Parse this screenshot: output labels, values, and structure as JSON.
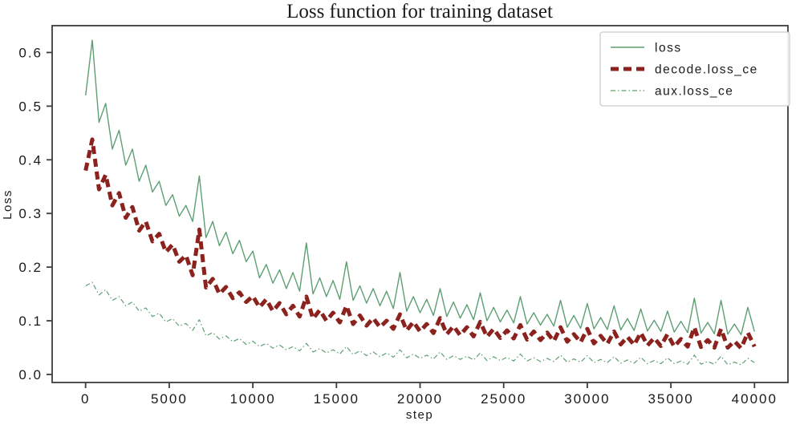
{
  "chart_data": {
    "type": "line",
    "title": "Loss function for training dataset",
    "xlabel": "step",
    "ylabel": "Loss",
    "xlim": [
      -2000,
      42000
    ],
    "ylim": [
      -0.015,
      0.65
    ],
    "grid": false,
    "legend_position": "upper right",
    "axis_color": "#3c3c3c",
    "x_ticks": {
      "values": [
        0,
        5000,
        10000,
        15000,
        20000,
        25000,
        30000,
        35000,
        40000
      ],
      "labels": [
        "0",
        "5000",
        "10000",
        "15000",
        "20000",
        "25000",
        "30000",
        "35000",
        "40000"
      ]
    },
    "y_ticks": {
      "values": [
        0.0,
        0.1,
        0.2,
        0.3,
        0.4,
        0.5,
        0.6
      ],
      "labels": [
        "0.0",
        "0.1",
        "0.2",
        "0.3",
        "0.4",
        "0.5",
        "0.6"
      ]
    },
    "x": [
      0,
      400,
      800,
      1200,
      1600,
      2000,
      2400,
      2800,
      3200,
      3600,
      4000,
      4400,
      4800,
      5200,
      5600,
      6000,
      6400,
      6800,
      7200,
      7600,
      8000,
      8400,
      8800,
      9200,
      9600,
      10000,
      10400,
      10800,
      11200,
      11600,
      12000,
      12400,
      12800,
      13200,
      13600,
      14000,
      14400,
      14800,
      15200,
      15600,
      16000,
      16400,
      16800,
      17200,
      17600,
      18000,
      18400,
      18800,
      19200,
      19600,
      20000,
      20400,
      20800,
      21200,
      21600,
      22000,
      22400,
      22800,
      23200,
      23600,
      24000,
      24400,
      24800,
      25200,
      25600,
      26000,
      26400,
      26800,
      27200,
      27600,
      28000,
      28400,
      28800,
      29200,
      29600,
      30000,
      30400,
      30800,
      31200,
      31600,
      32000,
      32400,
      32800,
      33200,
      33600,
      34000,
      34400,
      34800,
      35200,
      35600,
      36000,
      36400,
      36800,
      37200,
      37600,
      38000,
      38400,
      38800,
      39200,
      39600,
      40000
    ],
    "series": [
      {
        "name": "loss",
        "color": "#5d9f72",
        "width": 1.4,
        "dash": "",
        "values": [
          0.52,
          0.623,
          0.47,
          0.505,
          0.42,
          0.455,
          0.39,
          0.42,
          0.36,
          0.39,
          0.34,
          0.36,
          0.315,
          0.335,
          0.295,
          0.315,
          0.285,
          0.37,
          0.255,
          0.285,
          0.24,
          0.265,
          0.225,
          0.25,
          0.21,
          0.23,
          0.18,
          0.205,
          0.17,
          0.195,
          0.16,
          0.19,
          0.155,
          0.245,
          0.15,
          0.18,
          0.145,
          0.175,
          0.14,
          0.21,
          0.138,
          0.165,
          0.133,
          0.16,
          0.128,
          0.155,
          0.123,
          0.19,
          0.118,
          0.145,
          0.115,
          0.14,
          0.11,
          0.16,
          0.108,
          0.135,
          0.105,
          0.13,
          0.102,
          0.152,
          0.1,
          0.125,
          0.098,
          0.12,
          0.096,
          0.145,
          0.094,
          0.115,
          0.092,
          0.112,
          0.09,
          0.138,
          0.088,
          0.11,
          0.086,
          0.132,
          0.085,
          0.106,
          0.084,
          0.128,
          0.083,
          0.104,
          0.082,
          0.122,
          0.081,
          0.101,
          0.08,
          0.118,
          0.079,
          0.099,
          0.078,
          0.142,
          0.077,
          0.097,
          0.076,
          0.138,
          0.075,
          0.094,
          0.074,
          0.125,
          0.08
        ]
      },
      {
        "name": "decode.loss_ce",
        "color": "#8b221d",
        "width": 5,
        "dash": "10 6",
        "values": [
          0.38,
          0.438,
          0.345,
          0.372,
          0.315,
          0.338,
          0.292,
          0.312,
          0.268,
          0.285,
          0.248,
          0.262,
          0.228,
          0.242,
          0.21,
          0.222,
          0.185,
          0.27,
          0.162,
          0.178,
          0.15,
          0.163,
          0.142,
          0.153,
          0.135,
          0.146,
          0.125,
          0.14,
          0.118,
          0.133,
          0.112,
          0.128,
          0.108,
          0.145,
          0.104,
          0.12,
          0.1,
          0.115,
          0.097,
          0.128,
          0.094,
          0.11,
          0.091,
          0.105,
          0.088,
          0.1,
          0.085,
          0.112,
          0.082,
          0.098,
          0.08,
          0.094,
          0.077,
          0.105,
          0.075,
          0.09,
          0.073,
          0.088,
          0.071,
          0.098,
          0.07,
          0.085,
          0.068,
          0.082,
          0.067,
          0.092,
          0.065,
          0.08,
          0.064,
          0.078,
          0.062,
          0.088,
          0.061,
          0.075,
          0.06,
          0.085,
          0.058,
          0.072,
          0.057,
          0.08,
          0.056,
          0.07,
          0.055,
          0.078,
          0.054,
          0.068,
          0.053,
          0.075,
          0.052,
          0.066,
          0.052,
          0.088,
          0.051,
          0.064,
          0.05,
          0.085,
          0.05,
          0.062,
          0.049,
          0.078,
          0.052
        ]
      },
      {
        "name": "aux.loss_ce",
        "color": "#5d9f72",
        "width": 1.2,
        "dash": "6 3 1.5 3",
        "values": [
          0.165,
          0.172,
          0.148,
          0.158,
          0.138,
          0.145,
          0.128,
          0.135,
          0.118,
          0.124,
          0.108,
          0.114,
          0.098,
          0.104,
          0.09,
          0.095,
          0.082,
          0.102,
          0.072,
          0.078,
          0.066,
          0.072,
          0.061,
          0.067,
          0.056,
          0.062,
          0.052,
          0.058,
          0.049,
          0.055,
          0.046,
          0.052,
          0.044,
          0.058,
          0.042,
          0.048,
          0.04,
          0.046,
          0.038,
          0.052,
          0.037,
          0.044,
          0.035,
          0.042,
          0.033,
          0.04,
          0.032,
          0.046,
          0.031,
          0.038,
          0.03,
          0.036,
          0.029,
          0.042,
          0.028,
          0.035,
          0.028,
          0.034,
          0.027,
          0.04,
          0.026,
          0.033,
          0.026,
          0.032,
          0.025,
          0.038,
          0.025,
          0.031,
          0.024,
          0.03,
          0.024,
          0.036,
          0.023,
          0.029,
          0.023,
          0.035,
          0.022,
          0.028,
          0.022,
          0.033,
          0.021,
          0.027,
          0.021,
          0.032,
          0.02,
          0.026,
          0.02,
          0.031,
          0.02,
          0.025,
          0.019,
          0.036,
          0.019,
          0.024,
          0.019,
          0.034,
          0.018,
          0.023,
          0.018,
          0.03,
          0.022
        ]
      }
    ],
    "legend": {
      "labels": [
        "loss",
        "decode.loss_ce",
        "aux.loss_ce"
      ],
      "border_color": "#cccccc",
      "background": "#ffffff"
    }
  }
}
